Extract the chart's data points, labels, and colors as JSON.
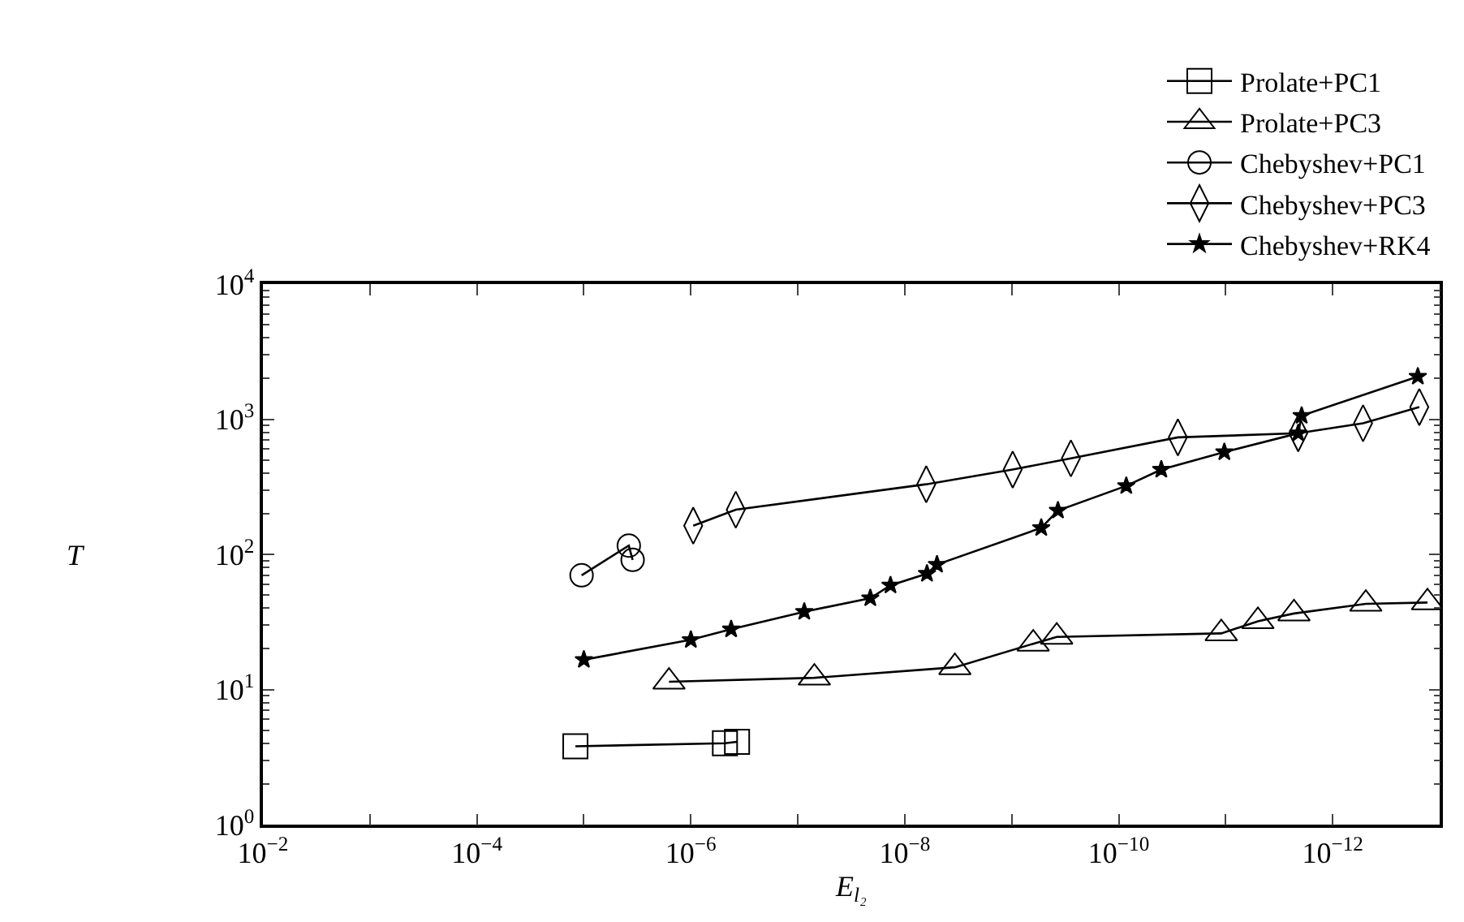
{
  "chart_data": {
    "type": "line",
    "xlabel": "E$_{l₂}$",
    "ylabel": "T",
    "log": "xy",
    "legend": "top right",
    "xlim": [
      0.01,
      1e-13
    ],
    "ylim": [
      1,
      10000
    ],
    "xticks": [
      {
        "value": 0.01,
        "label": "10$^{−2}$"
      },
      {
        "value": 0.001,
        "label": null
      },
      {
        "value": 0.0001,
        "label": "10$^{−4}$"
      },
      {
        "value": 1e-05,
        "label": null
      },
      {
        "value": 1e-06,
        "label": "10$^{−6}$"
      },
      {
        "value": 1e-07,
        "label": null
      },
      {
        "value": 1e-08,
        "label": "10$^{−8}$"
      },
      {
        "value": 1e-09,
        "label": null
      },
      {
        "value": 1e-10,
        "label": "10$^{−10}$"
      },
      {
        "value": 1e-11,
        "label": null
      },
      {
        "value": 1e-12,
        "label": "10$^{−12}$"
      },
      {
        "value": 1e-13,
        "label": null
      }
    ],
    "yticks": [
      {
        "value": 1,
        "label": "10$^{0}$"
      },
      {
        "value": 10,
        "label": "10$^{1}$"
      },
      {
        "value": 100,
        "label": "10$^{2}$"
      },
      {
        "value": 1000,
        "label": "10$^{3}$"
      },
      {
        "value": 10000,
        "label": "10$^{4}$"
      }
    ],
    "series": [
      {
        "name": "Prolate+PC1",
        "color": "#000000",
        "marker": "square",
        "x": [
          1.2e-05,
          4.8e-07,
          3.7e-07
        ],
        "values": [
          3.8,
          4.0,
          4.1
        ]
      },
      {
        "name": "Prolate+PC3",
        "color": "#000000",
        "marker": "triangle",
        "x": [
          1.6e-06,
          7e-08,
          3.4e-09,
          6.3e-10,
          3.8e-10,
          1.1e-11,
          5e-12,
          2.3e-12,
          4.9e-13,
          1.3e-13
        ],
        "values": [
          11.4,
          12.2,
          14.6,
          21.8,
          24.5,
          26,
          32,
          36.5,
          43,
          44
        ]
      },
      {
        "name": "Chebyshev+PC1",
        "color": "#000000",
        "marker": "circle",
        "x": [
          1.05e-05,
          3.8e-06,
          3.5e-06
        ],
        "values": [
          70,
          116,
          91
        ]
      },
      {
        "name": "Chebyshev+PC3",
        "color": "#000000",
        "marker": "diamond",
        "x": [
          9.5e-07,
          3.8e-07,
          6.3e-09,
          9.8e-10,
          2.8e-10,
          2.8e-11,
          2.1e-12,
          5.2e-13,
          1.55e-13
        ],
        "values": [
          163,
          214,
          330,
          424,
          513,
          734,
          787,
          933,
          1230
        ]
      },
      {
        "name": "Chebyshev+RK4",
        "color": "#000000",
        "marker": "star",
        "x": [
          1e-05,
          1e-06,
          4.2e-07,
          8.7e-08,
          2.1e-08,
          1.36e-08,
          6.2e-09,
          5e-09,
          5.3e-10,
          3.7e-10,
          8.5e-11,
          4e-11,
          1.03e-11,
          2.1e-12,
          1.95e-12,
          1.6e-13
        ],
        "values": [
          16.6,
          23.3,
          27.9,
          37.6,
          47.4,
          59,
          72,
          84,
          157,
          211,
          321,
          424,
          571,
          787,
          1062,
          2070
        ]
      }
    ]
  }
}
